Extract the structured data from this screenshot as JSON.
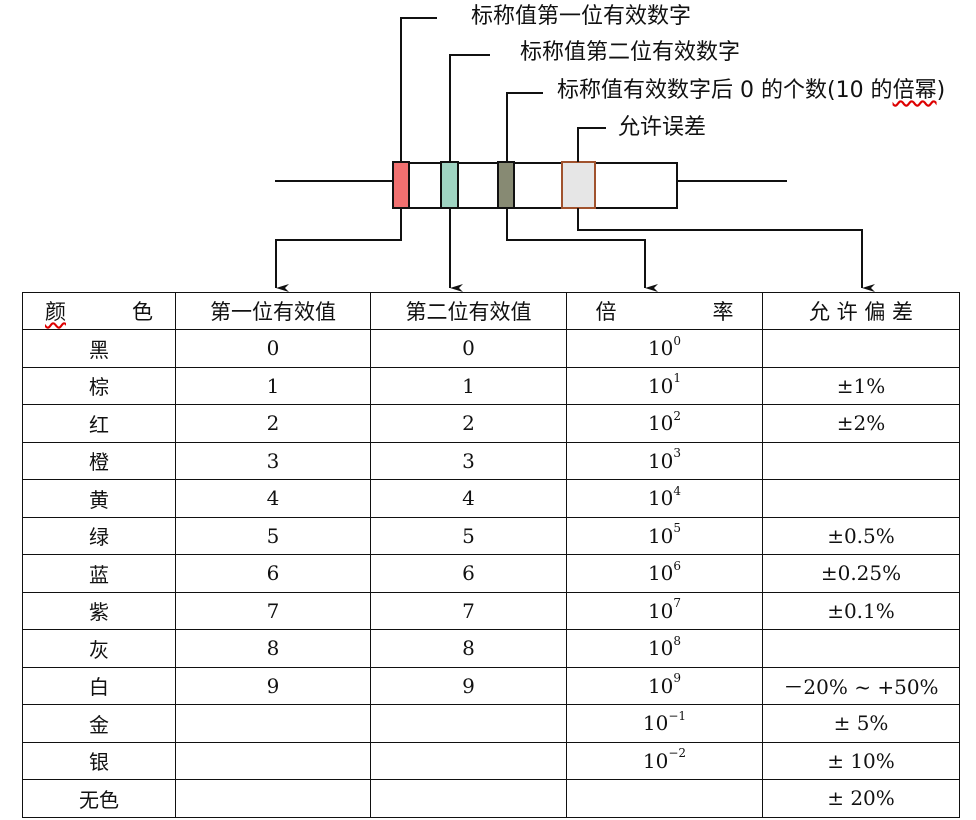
{
  "labels": {
    "first_digit": "标称值第一位有效数字",
    "second_digit": "标称值第二位有效数字",
    "zeros_prefix": "标称值有效数字后 0 的个数(10 的",
    "zeros_wavy": "倍幂",
    "zeros_suffix": ")",
    "tolerance": "允许误差"
  },
  "band_colors": {
    "band1": "#f07070",
    "band2": "#9fd4c2",
    "band3": "#878a73",
    "band4": "#e6e6e6",
    "band4_border": "#a0522d"
  },
  "table": {
    "headers": {
      "color_a": "颜",
      "color_b": "色",
      "first": "第一位有效值",
      "second": "第二位有效值",
      "mult_a": "倍",
      "mult_b": "率",
      "tol": "允 许 偏 差"
    },
    "rows": [
      {
        "name": "黑",
        "d1": "0",
        "d2": "0",
        "base": "10",
        "exp": "0",
        "tol": ""
      },
      {
        "name": "棕",
        "d1": "1",
        "d2": "1",
        "base": "10",
        "exp": "1",
        "tol": "±1%"
      },
      {
        "name": "红",
        "d1": "2",
        "d2": "2",
        "base": "10",
        "exp": "2",
        "tol": "±2%"
      },
      {
        "name": "橙",
        "d1": "3",
        "d2": "3",
        "base": "10",
        "exp": "3",
        "tol": ""
      },
      {
        "name": "黄",
        "d1": "4",
        "d2": "4",
        "base": "10",
        "exp": "4",
        "tol": ""
      },
      {
        "name": "绿",
        "d1": "5",
        "d2": "5",
        "base": "10",
        "exp": "5",
        "tol": "±0.5%"
      },
      {
        "name": "蓝",
        "d1": "6",
        "d2": "6",
        "base": "10",
        "exp": "6",
        "tol": "±0.25%"
      },
      {
        "name": "紫",
        "d1": "7",
        "d2": "7",
        "base": "10",
        "exp": "7",
        "tol": "±0.1%"
      },
      {
        "name": "灰",
        "d1": "8",
        "d2": "8",
        "base": "10",
        "exp": "8",
        "tol": ""
      },
      {
        "name": "白",
        "d1": "9",
        "d2": "9",
        "base": "10",
        "exp": "9",
        "tol": "－20% ~ +50%"
      },
      {
        "name": "金",
        "d1": "",
        "d2": "",
        "base": "10",
        "exp": "−1",
        "tol": "± 5%"
      },
      {
        "name": "银",
        "d1": "",
        "d2": "",
        "base": "10",
        "exp": "−2",
        "tol": "± 10%"
      },
      {
        "name": "无色",
        "d1": "",
        "d2": "",
        "base": "",
        "exp": "",
        "tol": "± 20%"
      }
    ]
  }
}
